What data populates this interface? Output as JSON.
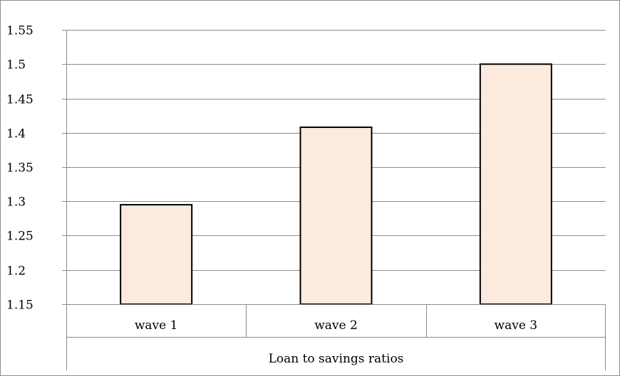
{
  "chart_data": {
    "type": "bar",
    "categories": [
      "wave 1",
      "wave 2",
      "wave 3"
    ],
    "group_label": "Loan to savings ratios",
    "values": [
      1.295,
      1.408,
      1.5
    ],
    "ylim": [
      1.15,
      1.55
    ],
    "yticks": [
      "1.55",
      "1.5",
      "1.45",
      "1.4",
      "1.35",
      "1.3",
      "1.25",
      "1.2",
      "1.15"
    ],
    "grid": true,
    "legend": "none",
    "colors": {
      "bar_fill": "#fdeadf",
      "bar_stroke": "#000000",
      "grid": "#8c8c8c"
    }
  }
}
